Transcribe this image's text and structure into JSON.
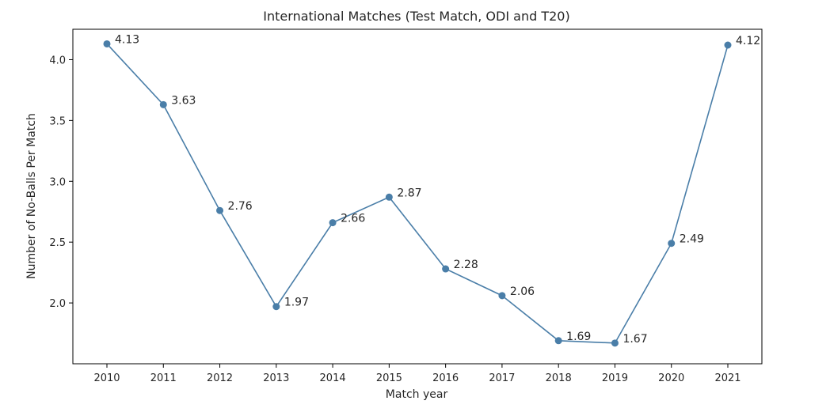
{
  "chart_data": {
    "type": "line",
    "title": "International Matches (Test Match, ODI and T20)",
    "xlabel": "Match year",
    "ylabel": "Number of No-Balls Per Match",
    "categories": [
      "2010",
      "2011",
      "2012",
      "2013",
      "2014",
      "2015",
      "2016",
      "2017",
      "2018",
      "2019",
      "2020",
      "2021"
    ],
    "series": [
      {
        "values": [
          4.13,
          3.63,
          2.76,
          1.97,
          2.66,
          2.87,
          2.28,
          2.06,
          1.69,
          1.67,
          2.49,
          4.12
        ],
        "data_labels": [
          "4.13",
          "3.63",
          "2.76",
          "1.97",
          "2.66",
          "2.87",
          "2.28",
          "2.06",
          "1.69",
          "1.67",
          "2.49",
          "4.12"
        ]
      }
    ],
    "yticks": [
      2.0,
      2.5,
      3.0,
      3.5,
      4.0
    ],
    "ytick_labels": [
      "2.0",
      "2.5",
      "3.0",
      "3.5",
      "4.0"
    ],
    "ylim": [
      1.5,
      4.25
    ],
    "grid": false,
    "colors": {
      "line": "#4a7ea8",
      "marker": "#4a7ea8",
      "axes": "#000000"
    }
  }
}
